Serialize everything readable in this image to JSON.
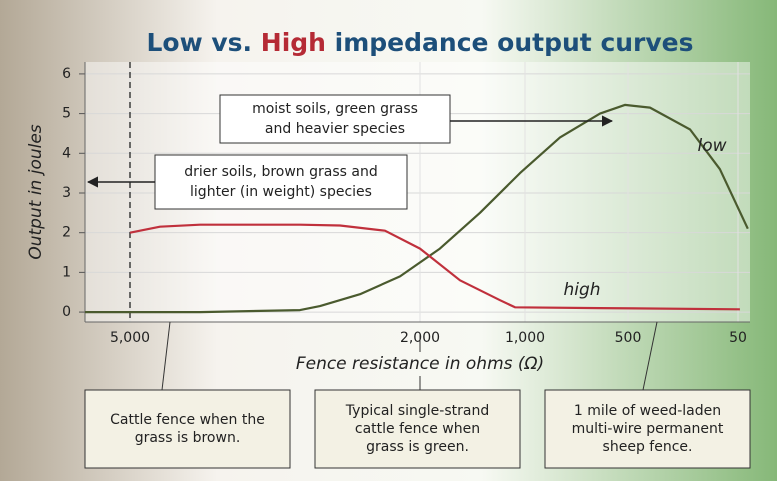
{
  "chart_data": {
    "type": "line",
    "title": [
      {
        "text": "Low",
        "color": "#1d4f7a"
      },
      {
        "text": " vs. ",
        "color": "#1d4f7a"
      },
      {
        "text": "High",
        "color": "#b52a35"
      },
      {
        "text": " impedance output curves",
        "color": "#1d4f7a"
      }
    ],
    "xlabel": "Fence resistance in ohms (Ω)",
    "ylabel": "Output in joules",
    "xlim": [
      5500,
      0
    ],
    "xticks": [
      {
        "value": 5000,
        "label": "5,000"
      },
      {
        "value": 2000,
        "label": "2,000"
      },
      {
        "value": 1000,
        "label": "1,000"
      },
      500,
      50
    ],
    "ylim": [
      -0.25,
      6.3
    ],
    "yticks": [
      0,
      1,
      2,
      3,
      4,
      5,
      6
    ],
    "grid": true,
    "series": [
      {
        "name": "low",
        "color": "#4a5a2e",
        "x": [
          5500,
          4276,
          3241,
          3034,
          2621,
          2207,
          1810,
          1429,
          1048,
          830,
          636,
          515,
          410,
          246,
          124,
          9
        ],
        "values": [
          0,
          0,
          0.05,
          0.15,
          0.45,
          0.9,
          1.6,
          2.5,
          3.5,
          4.4,
          5.0,
          5.22,
          5.15,
          4.6,
          3.6,
          2.1
        ]
      },
      {
        "name": "high",
        "color": "#c0303c",
        "x": [
          5000,
          4690,
          4276,
          3241,
          2828,
          2362,
          2000,
          1619,
          1238,
          1095,
          636,
          42
        ],
        "values": [
          2.0,
          2.15,
          2.2,
          2.2,
          2.18,
          2.05,
          1.6,
          0.8,
          0.3,
          0.12,
          0.1,
          0.07
        ]
      }
    ],
    "marker_line": {
      "x": 5000
    },
    "annotations": [
      {
        "lines": [
          "moist soils, green grass",
          "and heavier species"
        ]
      },
      {
        "lines": [
          "drier soils, brown grass and",
          "lighter (in weight) species"
        ]
      }
    ],
    "callouts": [
      {
        "lines": [
          "Cattle fence when the",
          "grass is brown."
        ]
      },
      {
        "lines": [
          "Typical single-strand",
          "cattle fence when",
          "grass is green."
        ]
      },
      {
        "lines": [
          "1 mile of weed-laden",
          "multi-wire permanent",
          "sheep fence."
        ]
      }
    ]
  }
}
